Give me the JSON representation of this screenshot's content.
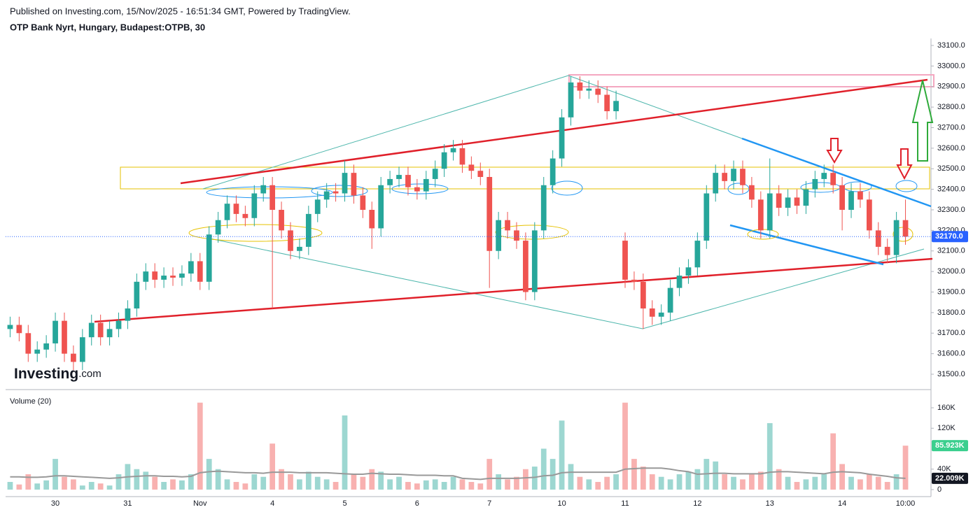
{
  "header": {
    "published": "Published on Investing.com, 15/Nov/2025 - 16:51:34 GMT, Powered by TradingView.",
    "symbol": "OTP Bank Nyrt, Hungary, Budapest:OTPB, 30"
  },
  "logo": {
    "brand": "Investing",
    "suffix": ".com"
  },
  "chart_data": {
    "type": "candlestick",
    "categories": [
      null,
      null,
      null,
      null,
      null,
      "30",
      null,
      null,
      null,
      null,
      null,
      null,
      null,
      "31",
      null,
      null,
      null,
      null,
      null,
      null,
      null,
      "Nov",
      null,
      null,
      null,
      null,
      null,
      null,
      null,
      "4",
      null,
      null,
      null,
      null,
      null,
      null,
      null,
      "5",
      null,
      null,
      null,
      null,
      null,
      null,
      null,
      "6",
      null,
      null,
      null,
      null,
      null,
      null,
      null,
      "7",
      null,
      null,
      null,
      null,
      null,
      null,
      null,
      "10",
      null,
      null,
      null,
      null,
      null,
      null,
      "11",
      null,
      null,
      null,
      null,
      null,
      null,
      null,
      "12",
      null,
      null,
      null,
      null,
      null,
      null,
      null,
      "13",
      null,
      null,
      null,
      null,
      null,
      null,
      null,
      "14",
      null,
      null,
      null,
      null,
      null,
      null,
      "10:00"
    ],
    "open": [
      31720,
      31740,
      31700,
      31600,
      31620,
      31650,
      31760,
      31600,
      31560,
      31680,
      31750,
      31680,
      31720,
      31760,
      31820,
      31950,
      32000,
      31960,
      31980,
      31970,
      31990,
      32050,
      31950,
      32180,
      32250,
      32330,
      32280,
      32260,
      32380,
      32420,
      32300,
      32200,
      32100,
      32120,
      32280,
      32350,
      32390,
      32380,
      32480,
      32370,
      32300,
      32210,
      32420,
      32450,
      32470,
      32410,
      32390,
      32450,
      32500,
      32580,
      32600,
      32520,
      32490,
      32460,
      32100,
      32250,
      32200,
      32150,
      31900,
      32200,
      32420,
      32550,
      32750,
      32920,
      32880,
      32890,
      32860,
      32780,
      32150,
      31960,
      31950,
      31820,
      31780,
      31800,
      31920,
      31980,
      32020,
      32150,
      32380,
      32480,
      32440,
      32500,
      32420,
      32350,
      32200,
      32380,
      32310,
      32360,
      32320,
      32400,
      32450,
      32480,
      32420,
      32300,
      32390,
      32350,
      32200,
      32120,
      32080,
      32250
    ],
    "high": [
      31780,
      31780,
      31740,
      31660,
      31690,
      31800,
      31800,
      31640,
      31720,
      31790,
      31790,
      31760,
      31800,
      31860,
      31990,
      32040,
      32040,
      32020,
      32020,
      32030,
      32090,
      32090,
      32220,
      32290,
      32370,
      32370,
      32320,
      32420,
      32460,
      32460,
      32340,
      32240,
      32160,
      32320,
      32390,
      32430,
      32430,
      32540,
      32520,
      32410,
      32340,
      32460,
      32490,
      32510,
      32510,
      32450,
      32490,
      32540,
      32620,
      32640,
      32640,
      32560,
      32530,
      32500,
      32290,
      32290,
      32240,
      32190,
      32240,
      32460,
      32590,
      32790,
      32950,
      32950,
      32930,
      32930,
      32900,
      32880,
      32190,
      32000,
      31990,
      31860,
      31840,
      31960,
      32020,
      32060,
      32190,
      32420,
      32520,
      32520,
      32540,
      32540,
      32460,
      32390,
      32550,
      32420,
      32400,
      32400,
      32440,
      32490,
      32520,
      32520,
      32460,
      32430,
      32430,
      32390,
      32240,
      32160,
      32290,
      32350
    ],
    "low": [
      31680,
      31660,
      31560,
      31560,
      31580,
      31610,
      31560,
      31520,
      31520,
      31640,
      31640,
      31640,
      31680,
      31720,
      31780,
      31910,
      31920,
      31920,
      31930,
      31930,
      31950,
      31910,
      31910,
      32140,
      32210,
      32240,
      32220,
      32220,
      32340,
      31820,
      32160,
      32060,
      32060,
      32080,
      32240,
      32310,
      32340,
      32340,
      32330,
      32260,
      32110,
      32170,
      32380,
      32410,
      32370,
      32350,
      32350,
      32410,
      32460,
      32540,
      32480,
      32450,
      32420,
      31920,
      32060,
      32160,
      32110,
      31860,
      31860,
      32160,
      32380,
      32510,
      32710,
      32840,
      32840,
      32820,
      32740,
      32740,
      31920,
      31910,
      31720,
      31740,
      31740,
      31760,
      31880,
      31940,
      31980,
      32110,
      32340,
      32400,
      32400,
      32380,
      32310,
      32160,
      32160,
      32270,
      32270,
      32280,
      32280,
      32360,
      32410,
      32380,
      32200,
      32260,
      32310,
      32160,
      32080,
      32040,
      32040,
      32130
    ],
    "close": [
      31740,
      31700,
      31600,
      31620,
      31650,
      31760,
      31600,
      31560,
      31680,
      31750,
      31680,
      31720,
      31760,
      31820,
      31950,
      32000,
      31960,
      31980,
      31970,
      31990,
      32050,
      31950,
      32180,
      32250,
      32330,
      32280,
      32260,
      32380,
      32420,
      32300,
      32200,
      32100,
      32120,
      32280,
      32350,
      32390,
      32380,
      32480,
      32370,
      32300,
      32210,
      32420,
      32450,
      32470,
      32410,
      32390,
      32450,
      32500,
      32580,
      32600,
      32520,
      32490,
      32460,
      32100,
      32250,
      32200,
      32150,
      31900,
      32200,
      32420,
      32550,
      32750,
      32920,
      32880,
      32890,
      32860,
      32780,
      32830,
      31960,
      31950,
      31820,
      31780,
      31800,
      31920,
      31980,
      32020,
      32150,
      32380,
      32480,
      32440,
      32500,
      32420,
      32350,
      32200,
      32380,
      32310,
      32360,
      32320,
      32400,
      32450,
      32480,
      32420,
      32300,
      32390,
      32350,
      32200,
      32120,
      32080,
      32250,
      32170
    ],
    "up_color": "#26a69a",
    "down_color": "#ef5350",
    "ylim": [
      31432,
      33134
    ],
    "yticks": [
      {
        "value": 31500,
        "label": "31500.0"
      },
      {
        "value": 31600,
        "label": "31600.0"
      },
      {
        "value": 31700,
        "label": "31700.0"
      },
      {
        "value": 31800,
        "label": "31800.0"
      },
      {
        "value": 31900,
        "label": "31900.0"
      },
      {
        "value": 32000,
        "label": "32000.0"
      },
      {
        "value": 32100,
        "label": "32100.0"
      },
      {
        "value": 32200,
        "label": "32200.0"
      },
      {
        "value": 32300,
        "label": "32300.0"
      },
      {
        "value": 32400,
        "label": "32400.0"
      },
      {
        "value": 32500,
        "label": "32500.0"
      },
      {
        "value": 32600,
        "label": "32600.0"
      },
      {
        "value": 32700,
        "label": "32700.0"
      },
      {
        "value": 32800,
        "label": "32800.0"
      },
      {
        "value": 32900,
        "label": "32900.0"
      },
      {
        "value": 33000,
        "label": "33000.0"
      },
      {
        "value": 33100,
        "label": "33100.0"
      }
    ],
    "last_price": {
      "value": 32170,
      "label": "32170.0"
    },
    "volume": {
      "title": "Volume (20)",
      "values": [
        15000,
        10000,
        30000,
        12000,
        18000,
        60000,
        25000,
        20000,
        8000,
        15000,
        12000,
        8000,
        30000,
        50000,
        40000,
        35000,
        25000,
        15000,
        20000,
        18000,
        30000,
        170000,
        60000,
        40000,
        20000,
        15000,
        12000,
        30000,
        25000,
        90000,
        40000,
        30000,
        20000,
        35000,
        25000,
        20000,
        15000,
        145000,
        30000,
        25000,
        40000,
        35000,
        20000,
        25000,
        15000,
        12000,
        18000,
        20000,
        15000,
        25000,
        20000,
        15000,
        12000,
        60000,
        30000,
        20000,
        25000,
        40000,
        45000,
        80000,
        60000,
        135000,
        50000,
        25000,
        20000,
        15000,
        25000,
        30000,
        170000,
        60000,
        45000,
        30000,
        25000,
        20000,
        30000,
        35000,
        40000,
        60000,
        55000,
        30000,
        25000,
        20000,
        30000,
        35000,
        130000,
        40000,
        25000,
        15000,
        20000,
        25000,
        30000,
        110000,
        50000,
        25000,
        20000,
        30000,
        25000,
        15000,
        30000,
        85923
      ],
      "ma_values": [
        25000,
        25000,
        24000,
        24000,
        25000,
        27000,
        27000,
        26000,
        25000,
        24000,
        23000,
        22000,
        23000,
        25000,
        26000,
        27000,
        27000,
        26000,
        26000,
        25000,
        26000,
        33000,
        35000,
        36000,
        35000,
        34000,
        33000,
        33000,
        32000,
        34000,
        34000,
        34000,
        33000,
        33000,
        33000,
        33000,
        32000,
        31000,
        30000,
        30000,
        32000,
        31000,
        30000,
        30000,
        29000,
        28000,
        28000,
        28000,
        27000,
        27000,
        22000,
        21000,
        20000,
        22000,
        22000,
        22000,
        22000,
        23000,
        24000,
        27000,
        28000,
        33000,
        34000,
        34000,
        34000,
        34000,
        34000,
        34000,
        40000,
        41000,
        42000,
        42000,
        42000,
        40000,
        37000,
        35000,
        30000,
        31000,
        32000,
        32000,
        31000,
        31000,
        31000,
        31000,
        34000,
        35000,
        35000,
        34000,
        33000,
        32000,
        31000,
        34000,
        35000,
        34000,
        33000,
        30000,
        28000,
        26000,
        23000,
        22009
      ],
      "ma_color": "#999999",
      "ylim": [
        -13700,
        184600
      ],
      "yticks": [
        0,
        {
          "value": 40000,
          "label": "40K"
        },
        {
          "value": 120000,
          "label": "120K"
        },
        {
          "value": 160000,
          "label": "160K"
        }
      ],
      "last_value": {
        "value": 85923,
        "label": "85.923K"
      },
      "ma_last": {
        "value": 22009,
        "label": "22.009K"
      }
    }
  }
}
